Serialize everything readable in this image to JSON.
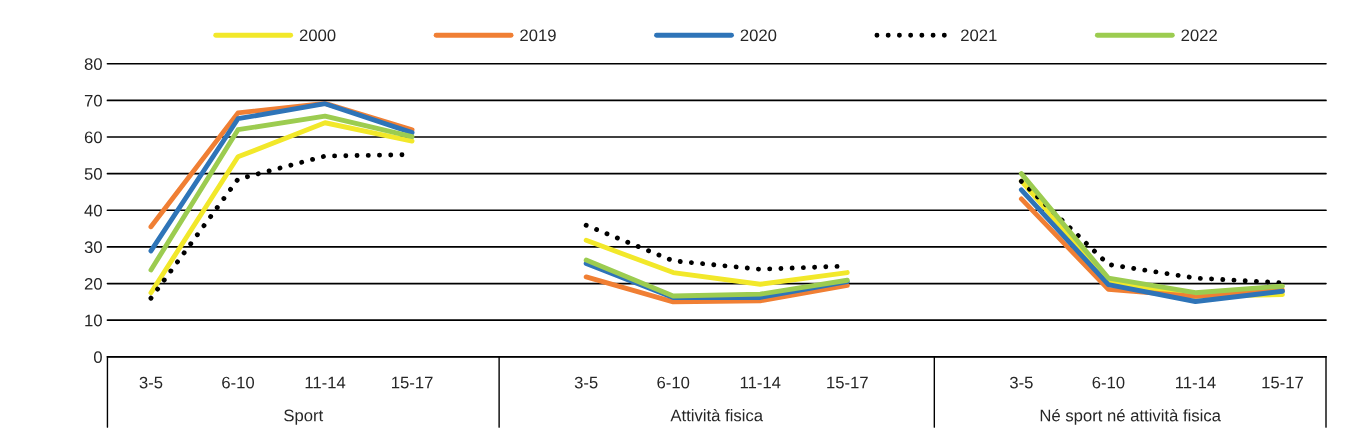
{
  "chart_data": {
    "type": "line",
    "categories": [
      "3-5",
      "6-10",
      "11-14",
      "15-17",
      null,
      "3-5",
      "6-10",
      "11-14",
      "15-17",
      null,
      "3-5",
      "6-10",
      "11-14",
      "15-17"
    ],
    "series": [
      {
        "name": "2000",
        "color": "#f2e82a",
        "values": [
          17.5,
          54.6,
          63.9,
          58.9,
          null,
          31.8,
          23,
          19.8,
          23,
          null,
          48,
          20.6,
          16.5,
          17
        ]
      },
      {
        "name": "2019",
        "color": "#f07f34",
        "values": [
          35.5,
          66.6,
          69.2,
          62,
          null,
          21.8,
          15,
          15.3,
          19.5,
          null,
          43.1,
          18.4,
          16.5,
          18.2
        ]
      },
      {
        "name": "2020",
        "color": "#2e74b8",
        "values": [
          28.9,
          65,
          69.1,
          61.2,
          null,
          25.5,
          16.2,
          16.2,
          20.5,
          null,
          45.6,
          19.7,
          15.1,
          17.9
        ]
      },
      {
        "name": "2021",
        "color": "#000000",
        "line_style": "dotted",
        "values": [
          16,
          48.5,
          54.8,
          55.2,
          null,
          35.9,
          26.2,
          23.9,
          24.8,
          null,
          47.9,
          25.2,
          21.5,
          20.2
        ]
      },
      {
        "name": "2022",
        "color": "#9ccc50",
        "values": [
          23.7,
          62,
          65.7,
          60.1,
          null,
          26.4,
          16.6,
          17.1,
          20.9,
          null,
          50,
          21.5,
          17.5,
          19.3
        ]
      }
    ],
    "ylim": [
      0,
      80
    ],
    "yticks": [
      0,
      10,
      20,
      30,
      40,
      50,
      60,
      70,
      80
    ],
    "grid": "y",
    "legend": "top",
    "annotations": [
      "Sport",
      "Attività fisica",
      "Né sport né attività fisica"
    ]
  }
}
